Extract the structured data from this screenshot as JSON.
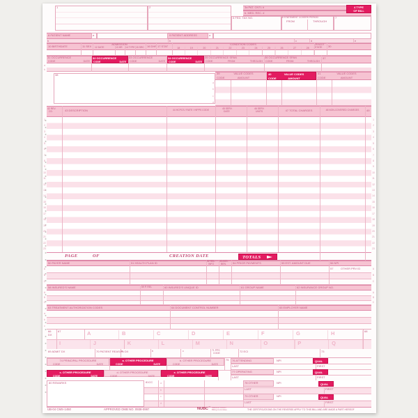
{
  "window": {
    "background": "#f0efec"
  },
  "colors": {
    "ink": "#c25a80",
    "solid_red": "#e31b60",
    "band_pink": "#f6c3d2",
    "stripe_pink": "#fbe1e9"
  },
  "top": {
    "f1": "1",
    "f2": "2",
    "f3a": "3a PAT. CNTL #",
    "f3b": "b. MED. REC. #",
    "f4_line1": "4 TYPE",
    "f4_line2": "OF BILL",
    "f5": "5 FED. TAX NO.",
    "f6": "6 STATEMENT COVERS PERIOD",
    "from": "FROM",
    "through": "THROUGH",
    "f7": "7"
  },
  "patient": {
    "f8": "8 PATIENT NAME",
    "a": "a",
    "b": "b",
    "f9": "9 PATIENT ADDRESS",
    "c": "c",
    "d": "d",
    "e": "e"
  },
  "admission": {
    "f10": "10 BIRTHDATE",
    "f11": "11 SEX",
    "group": "ADMISSION",
    "f12": "12 DATE",
    "f13": "13 HR",
    "f14": "14 TYPE",
    "f15": "15 SRC",
    "f16": "16 DHR",
    "f17": "17 STAT",
    "condition_group": "CONDITION CODES",
    "condition_numbers": [
      "18",
      "19",
      "20",
      "21",
      "22",
      "23",
      "24",
      "25",
      "26",
      "27",
      "28"
    ],
    "f29_line1": "29 ACDT",
    "f29_line2": "STATE",
    "f30": "30"
  },
  "occurrence": {
    "f31": "31 OCCURRENCE",
    "f32": "32 OCCURRENCE",
    "f33": "33 OCCURRENCE",
    "f34": "34 OCCURRENCE",
    "f35": "35 OCCURRENCE SPAN",
    "f36": "36 OCCURRENCE SPAN",
    "f37": "37",
    "code": "CODE",
    "date": "DATE",
    "from": "FROM",
    "through": "THROUGH",
    "row_letters": [
      "a",
      "b"
    ]
  },
  "value_codes": {
    "f38": "38",
    "f39": "39",
    "f40": "40",
    "f41": "41",
    "title": "VALUE CODES",
    "code": "CODE",
    "amount": "AMOUNT",
    "row_letters": [
      "a",
      "b",
      "c",
      "d"
    ]
  },
  "columns": {
    "f42a": "42 REV.",
    "f42b": "CD.",
    "f43": "43 DESCRIPTION",
    "f44": "44 HCPCS / RATE / HIPPS CODE",
    "f45a": "45 SERV.",
    "f45b": "DATE",
    "f46a": "46 SERV.",
    "f46b": "UNITS",
    "f47": "47 TOTAL CHARGES",
    "f48": "48 NON-COVERED CHARGES",
    "f49": "49"
  },
  "service": {
    "line_numbers": [
      "1",
      "2",
      "3",
      "4",
      "5",
      "6",
      "7",
      "8",
      "9",
      "10",
      "11",
      "12",
      "13",
      "14",
      "15",
      "16",
      "17",
      "18",
      "19",
      "20",
      "21",
      "22",
      "23"
    ]
  },
  "totals_row": {
    "page": "PAGE",
    "of": "OF",
    "creation_date": "CREATION DATE",
    "totals": "TOTALS"
  },
  "payer": {
    "f50": "50 PAYER NAME",
    "f51": "51 HEALTH PLAN ID",
    "f52a": "52 REL.",
    "f52b": "INFO",
    "f53a": "53 ASG.",
    "f53b": "BEN.",
    "f54": "54 PRIOR PAYMENTS",
    "f55": "55 EST. AMOUNT DUE",
    "f56": "56 NPI",
    "f57": "57",
    "f57_label": "OTHER",
    "f57_label2": "PRV ID",
    "row_letters": [
      "A",
      "B",
      "C"
    ]
  },
  "insured": {
    "f58": "58 INSURED'S NAME",
    "f59": "59 P. REL",
    "f60": "60 INSURED'S UNIQUE ID",
    "f61": "61 GROUP NAME",
    "f62": "62 INSURANCE GROUP NO.",
    "row_letters": [
      "A",
      "B",
      "C"
    ]
  },
  "auth": {
    "f63": "63 TREATMENT AUTHORIZATION CODES",
    "f64": "64 DOCUMENT CONTROL NUMBER",
    "f65": "65 EMPLOYER NAME",
    "row_letters": [
      "a",
      "b",
      "c"
    ]
  },
  "diagnosis": {
    "f66a": "66",
    "f66b": "DX",
    "f67": "67",
    "letters_row1": [
      "A",
      "B",
      "C",
      "D",
      "E",
      "F",
      "G",
      "H"
    ],
    "letters_row2": [
      "I",
      "J",
      "K",
      "L",
      "M",
      "N",
      "O",
      "P",
      "Q"
    ],
    "f68": "68"
  },
  "admit_dx": {
    "f69": "69 ADMIT DX",
    "f70": "70 PATIENT REASON DX",
    "letters": [
      "a",
      "b",
      "c"
    ],
    "f71a": "71 PPS",
    "f71b": "CODE",
    "f72": "72 ECI",
    "f73": "73"
  },
  "procedures": {
    "f74": "74 PRINCIPAL PROCEDURE",
    "fa": "a. OTHER PROCEDURE",
    "fb": "b. OTHER PROCEDURE",
    "fc": "c. OTHER PROCEDURE",
    "fd": "d. OTHER PROCEDURE",
    "fe": "e. OTHER PROCEDURE",
    "code": "CODE",
    "date": "DATE",
    "f75": "75"
  },
  "physicians": {
    "f76": "76 ATTENDING",
    "f77": "77 OPERATING",
    "f78": "78 OTHER",
    "f79": "79 OTHER",
    "npi": "NPI",
    "qual": "QUAL",
    "last": "LAST",
    "first": "FIRST"
  },
  "remarks": {
    "f80": "80 REMARKS",
    "f81": "81CC",
    "row_letters": [
      "a",
      "b",
      "c",
      "d"
    ]
  },
  "footer": {
    "form_id": "UB-04 CMS-1450",
    "approved": "APPROVED OMB NO. 0938-0997",
    "nubc_logo": "NUBC",
    "nubc_tm": "™",
    "nubc_org": "National Uniform\nBilling Committee",
    "certification": "THE CERTIFICATIONS ON THE REVERSE APPLY TO THIS BILL AND ARE MADE A PART HEREOF"
  }
}
